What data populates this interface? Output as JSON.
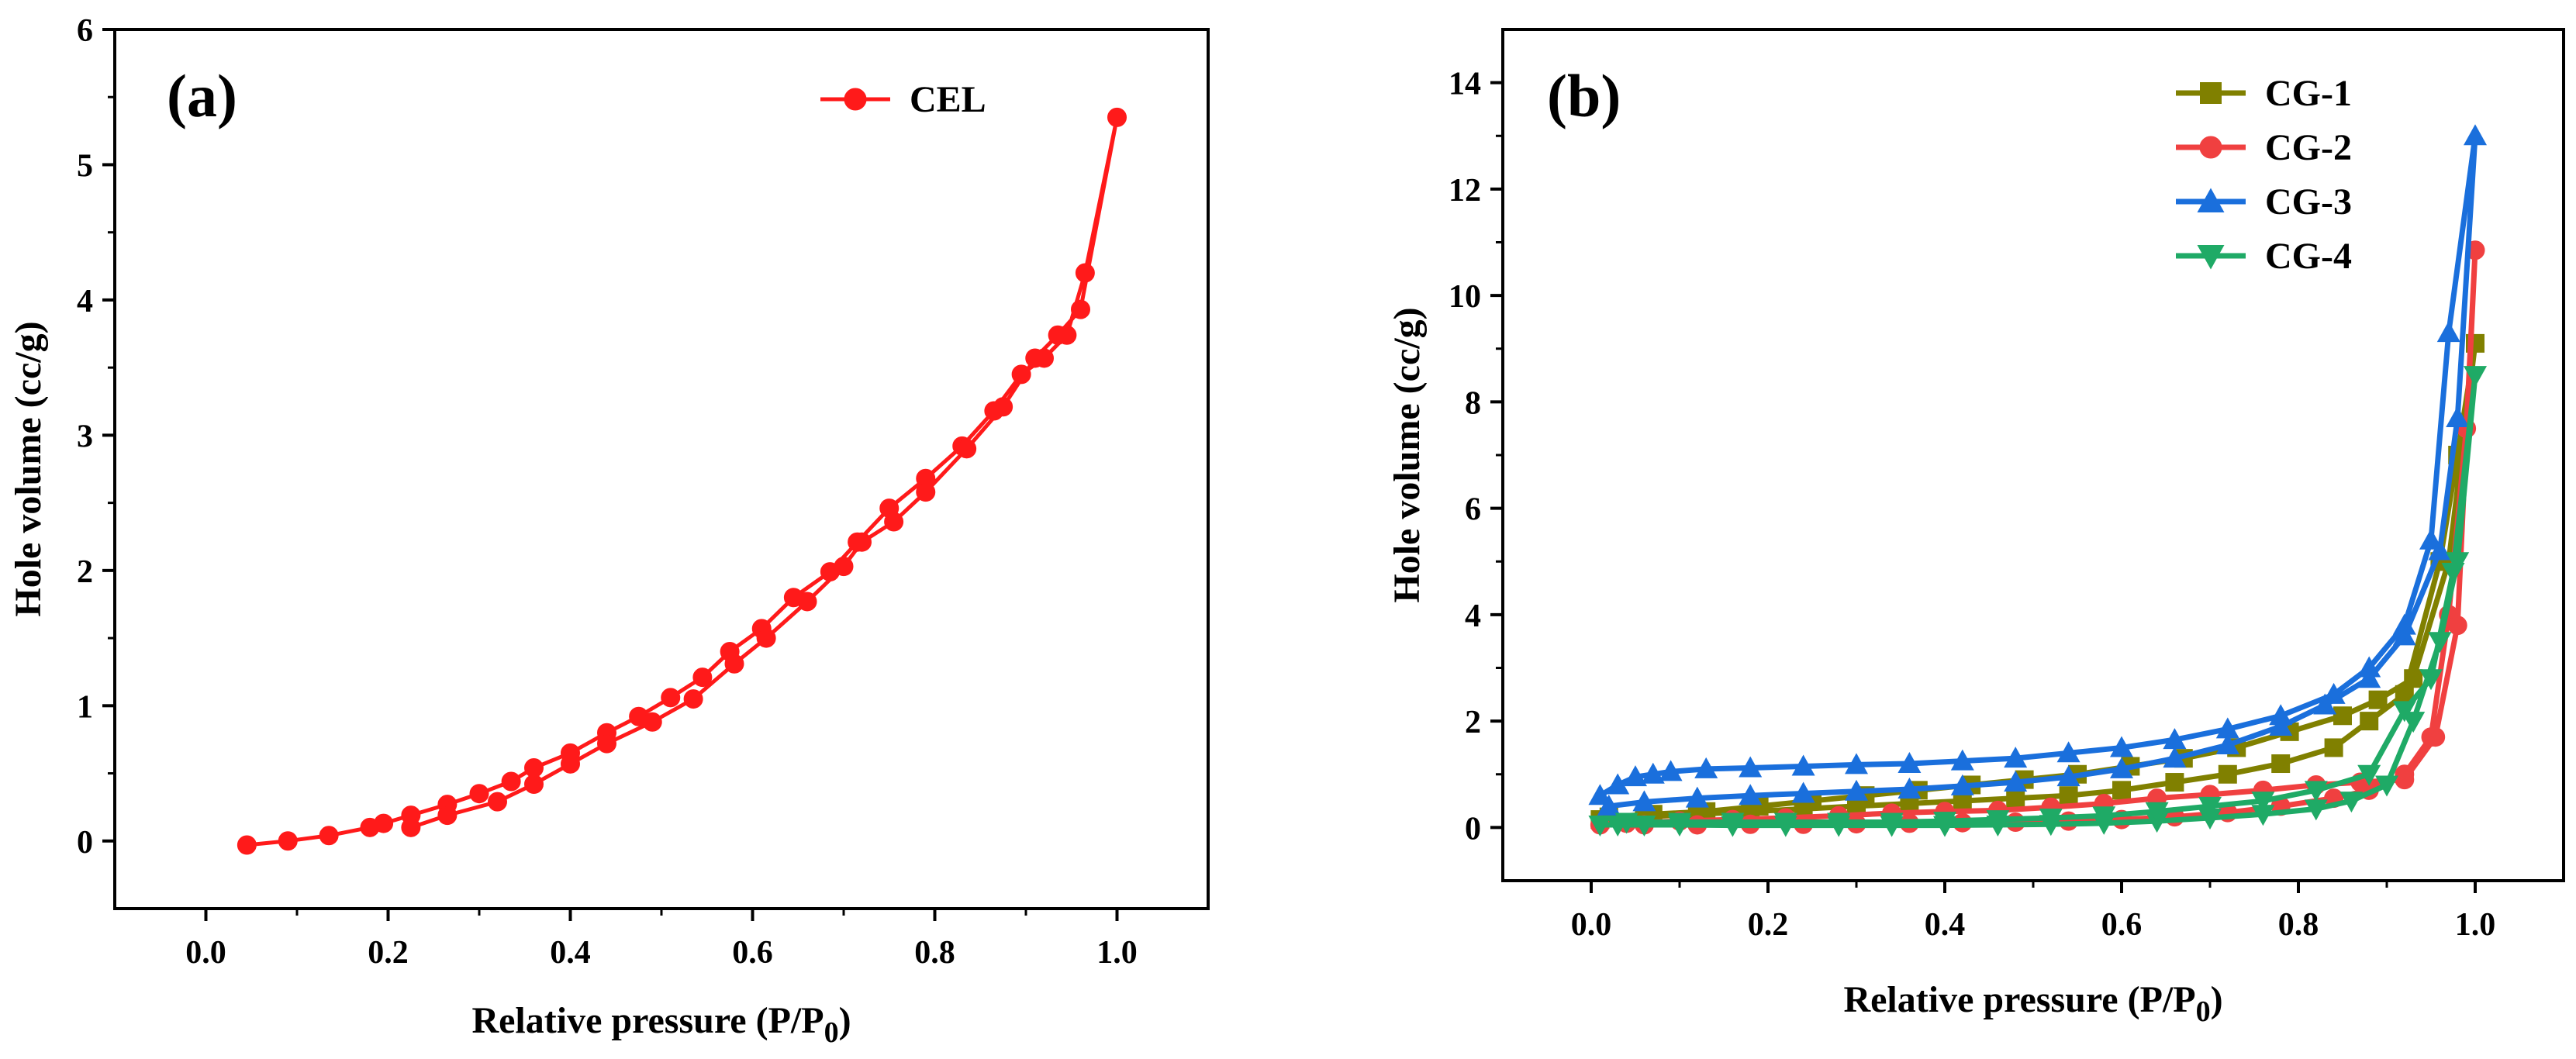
{
  "chart_data": [
    {
      "type": "line",
      "panel_label": "(a)",
      "xlabel": "Relative pressure (P/P",
      "xlabel_sub": "0",
      "xlabel_close": ")",
      "ylabel": "Hole volume (cc/g)",
      "xlim": [
        -0.1,
        1.1
      ],
      "ylim": [
        -0.5,
        6
      ],
      "x_ticks": [
        0.0,
        0.2,
        0.4,
        0.6,
        0.8,
        1.0
      ],
      "x_tick_labels": [
        "0.0",
        "0.2",
        "0.4",
        "0.6",
        "0.8",
        "1.0"
      ],
      "y_ticks": [
        0,
        1,
        2,
        3,
        4,
        5,
        6
      ],
      "y_tick_labels": [
        "0",
        "1",
        "2",
        "3",
        "4",
        "5",
        "6"
      ],
      "legend_position": "top-right",
      "series": [
        {
          "name": "CEL",
          "color": "#ff1a1a",
          "marker": "circle",
          "x": [
            0.045,
            0.09,
            0.135,
            0.18,
            0.195,
            0.225,
            0.265,
            0.3,
            0.335,
            0.36,
            0.4,
            0.44,
            0.475,
            0.51,
            0.545,
            0.575,
            0.61,
            0.645,
            0.685,
            0.715,
            0.75,
            0.79,
            0.83,
            0.865,
            0.895,
            0.92,
            0.945,
            0.965,
            1.0,
            0.96,
            0.935,
            0.91,
            0.875,
            0.835,
            0.79,
            0.755,
            0.72,
            0.7,
            0.66,
            0.615,
            0.58,
            0.535,
            0.49,
            0.44,
            0.4,
            0.36,
            0.32,
            0.265,
            0.225
          ],
          "y": [
            -0.03,
            0.0,
            0.04,
            0.1,
            0.13,
            0.19,
            0.27,
            0.35,
            0.44,
            0.54,
            0.65,
            0.8,
            0.92,
            1.06,
            1.21,
            1.4,
            1.57,
            1.8,
            1.99,
            2.21,
            2.46,
            2.68,
            2.92,
            3.18,
            3.45,
            3.57,
            3.74,
            4.2,
            5.35,
            3.93,
            3.74,
            3.57,
            3.21,
            2.9,
            2.58,
            2.36,
            2.21,
            2.03,
            1.77,
            1.5,
            1.31,
            1.05,
            0.88,
            0.72,
            0.57,
            0.42,
            0.29,
            0.19,
            0.1
          ]
        }
      ]
    },
    {
      "type": "line",
      "panel_label": "(b)",
      "xlabel": "Relative pressure (P/P",
      "xlabel_sub": "0",
      "xlabel_close": ")",
      "ylabel": "Hole volume (cc/g)",
      "xlim": [
        -0.1,
        1.1
      ],
      "ylim": [
        -1,
        15
      ],
      "x_ticks": [
        0.0,
        0.2,
        0.4,
        0.6,
        0.8,
        1.0
      ],
      "x_tick_labels": [
        "0.0",
        "0.2",
        "0.4",
        "0.6",
        "0.8",
        "1.0"
      ],
      "y_ticks": [
        0,
        2,
        4,
        6,
        8,
        10,
        12,
        14
      ],
      "y_tick_labels": [
        "0",
        "2",
        "4",
        "6",
        "8",
        "10",
        "12",
        "14"
      ],
      "legend_position": "top-right",
      "series": [
        {
          "name": "CG-1",
          "color": "#808000",
          "marker": "square",
          "x": [
            0.01,
            0.06,
            0.12,
            0.18,
            0.24,
            0.3,
            0.36,
            0.42,
            0.48,
            0.54,
            0.6,
            0.66,
            0.72,
            0.78,
            0.84,
            0.88,
            0.92,
            0.96,
            0.98,
            1.0,
            0.97,
            0.93,
            0.89,
            0.85,
            0.79,
            0.73,
            0.67,
            0.61,
            0.55,
            0.49,
            0.43,
            0.37,
            0.31,
            0.25,
            0.19,
            0.13,
            0.07,
            0.02
          ],
          "y": [
            0.15,
            0.2,
            0.25,
            0.3,
            0.35,
            0.4,
            0.45,
            0.5,
            0.55,
            0.6,
            0.7,
            0.85,
            1.0,
            1.2,
            1.5,
            2.0,
            2.5,
            5.0,
            7.0,
            9.1,
            5.0,
            2.8,
            2.4,
            2.1,
            1.8,
            1.5,
            1.3,
            1.15,
            1.0,
            0.9,
            0.8,
            0.7,
            0.6,
            0.5,
            0.4,
            0.3,
            0.25,
            0.2
          ]
        },
        {
          "name": "CG-2",
          "color": "#f04040",
          "marker": "circle",
          "x": [
            0.01,
            0.06,
            0.12,
            0.18,
            0.24,
            0.3,
            0.36,
            0.42,
            0.48,
            0.54,
            0.6,
            0.66,
            0.72,
            0.78,
            0.84,
            0.88,
            0.92,
            0.95,
            0.97,
            0.99,
            1.0,
            0.98,
            0.955,
            0.92,
            0.87,
            0.82,
            0.76,
            0.7,
            0.64,
            0.58,
            0.52,
            0.46,
            0.4,
            0.34,
            0.28,
            0.22,
            0.16,
            0.1,
            0.04
          ],
          "y": [
            0.05,
            0.05,
            0.05,
            0.06,
            0.06,
            0.07,
            0.08,
            0.09,
            0.1,
            0.12,
            0.15,
            0.2,
            0.28,
            0.4,
            0.55,
            0.7,
            1.0,
            1.7,
            4.0,
            7.5,
            10.85,
            3.8,
            1.7,
            0.9,
            0.85,
            0.8,
            0.7,
            0.62,
            0.55,
            0.45,
            0.38,
            0.32,
            0.3,
            0.27,
            0.22,
            0.18,
            0.15,
            0.12,
            0.08
          ]
        },
        {
          "name": "CG-3",
          "color": "#1a6fdc",
          "marker": "triangle",
          "x": [
            0.01,
            0.03,
            0.05,
            0.07,
            0.09,
            0.13,
            0.18,
            0.24,
            0.3,
            0.36,
            0.42,
            0.48,
            0.54,
            0.6,
            0.66,
            0.72,
            0.78,
            0.84,
            0.88,
            0.92,
            0.95,
            0.97,
            1.0,
            0.98,
            0.96,
            0.92,
            0.88,
            0.83,
            0.78,
            0.72,
            0.66,
            0.6,
            0.54,
            0.48,
            0.42,
            0.36,
            0.3,
            0.24,
            0.18,
            0.12,
            0.06,
            0.02
          ],
          "y": [
            0.6,
            0.8,
            0.95,
            1.0,
            1.05,
            1.1,
            1.12,
            1.15,
            1.18,
            1.2,
            1.25,
            1.3,
            1.4,
            1.5,
            1.65,
            1.85,
            2.1,
            2.5,
            3.0,
            3.8,
            5.4,
            9.3,
            13.0,
            7.7,
            5.2,
            3.6,
            2.8,
            2.3,
            1.9,
            1.55,
            1.3,
            1.1,
            0.95,
            0.85,
            0.78,
            0.72,
            0.68,
            0.64,
            0.6,
            0.55,
            0.48,
            0.4
          ]
        },
        {
          "name": "CG-4",
          "color": "#1faa66",
          "marker": "triangle-down",
          "x": [
            0.01,
            0.03,
            0.06,
            0.1,
            0.16,
            0.22,
            0.28,
            0.34,
            0.4,
            0.46,
            0.52,
            0.58,
            0.64,
            0.7,
            0.76,
            0.82,
            0.86,
            0.9,
            0.93,
            0.96,
            0.98,
            1.0,
            0.975,
            0.95,
            0.92,
            0.88,
            0.82,
            0.76,
            0.7,
            0.64,
            0.58,
            0.52,
            0.46,
            0.4,
            0.34,
            0.28,
            0.22,
            0.16,
            0.1,
            0.04
          ],
          "y": [
            0.05,
            0.05,
            0.05,
            0.05,
            0.04,
            0.04,
            0.04,
            0.04,
            0.04,
            0.05,
            0.06,
            0.08,
            0.12,
            0.18,
            0.25,
            0.35,
            0.5,
            0.8,
            2.0,
            3.5,
            5.0,
            8.5,
            4.8,
            2.8,
            2.2,
            1.0,
            0.7,
            0.5,
            0.4,
            0.3,
            0.22,
            0.18,
            0.15,
            0.12,
            0.1,
            0.1,
            0.1,
            0.1,
            0.1,
            0.1
          ]
        }
      ]
    }
  ]
}
